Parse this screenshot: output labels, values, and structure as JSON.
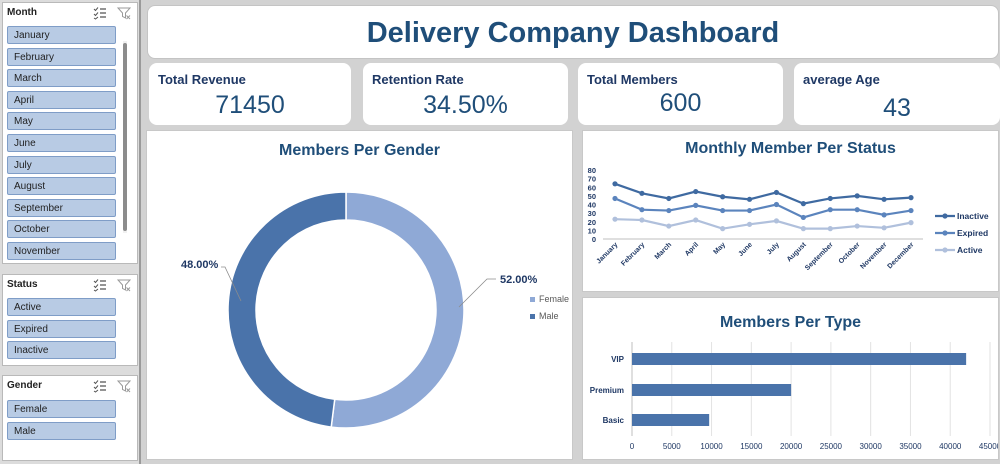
{
  "slicers": {
    "month": {
      "title": "Month",
      "items": [
        "January",
        "February",
        "March",
        "April",
        "May",
        "June",
        "July",
        "August",
        "September",
        "October",
        "November"
      ]
    },
    "status": {
      "title": "Status",
      "items": [
        "Active",
        "Expired",
        "Inactive"
      ]
    },
    "gender": {
      "title": "Gender",
      "items": [
        "Female",
        "Male"
      ]
    }
  },
  "dashboard": {
    "title": "Delivery Company Dashboard",
    "kpis": [
      {
        "label": "Total Revenue",
        "value": "71450"
      },
      {
        "label": "Retention Rate",
        "value": "34.50%"
      },
      {
        "label": "Total Members",
        "value": "600"
      },
      {
        "label": "average Age",
        "value": "43"
      }
    ]
  },
  "colors": {
    "accent": "#1f4e79",
    "female": "#8fa9d6",
    "male": "#4a73aa",
    "inactive": "#3f6aa1",
    "expired": "#5b84bd",
    "active": "#b0c0dc",
    "slicer_item": "#b8cbe4"
  },
  "chart_data": [
    {
      "type": "pie",
      "title": "Members Per Gender",
      "categories": [
        "Female",
        "Male"
      ],
      "values": [
        52.0,
        48.0
      ],
      "data_labels": [
        "52.00%",
        "48.00%"
      ],
      "donut": true,
      "legend": "right"
    },
    {
      "type": "line",
      "title": "Monthly Member Per Status",
      "categories": [
        "January",
        "February",
        "March",
        "April",
        "May",
        "June",
        "July",
        "August",
        "September",
        "October",
        "November",
        "December"
      ],
      "ylim": [
        0,
        80
      ],
      "yticks": [
        0,
        10,
        20,
        30,
        40,
        50,
        60,
        70,
        80
      ],
      "series": [
        {
          "name": "Inactive",
          "values": [
            64,
            53,
            47,
            55,
            49,
            46,
            54,
            41,
            47,
            50,
            46,
            48
          ]
        },
        {
          "name": "Expired",
          "values": [
            47,
            34,
            33,
            39,
            33,
            33,
            40,
            25,
            34,
            34,
            28,
            33
          ]
        },
        {
          "name": "Active",
          "values": [
            23,
            22,
            15,
            22,
            12,
            17,
            21,
            12,
            12,
            15,
            13,
            19
          ]
        }
      ],
      "grid": false,
      "legend": "right"
    },
    {
      "type": "bar",
      "orientation": "horizontal",
      "title": "Members Per Type",
      "categories": [
        "VIP",
        "Premium",
        "Basic"
      ],
      "values": [
        42000,
        20000,
        9700
      ],
      "xlim": [
        0,
        45000
      ],
      "xticks": [
        0,
        5000,
        10000,
        15000,
        20000,
        25000,
        30000,
        35000,
        40000,
        45000
      ],
      "grid": true
    }
  ]
}
